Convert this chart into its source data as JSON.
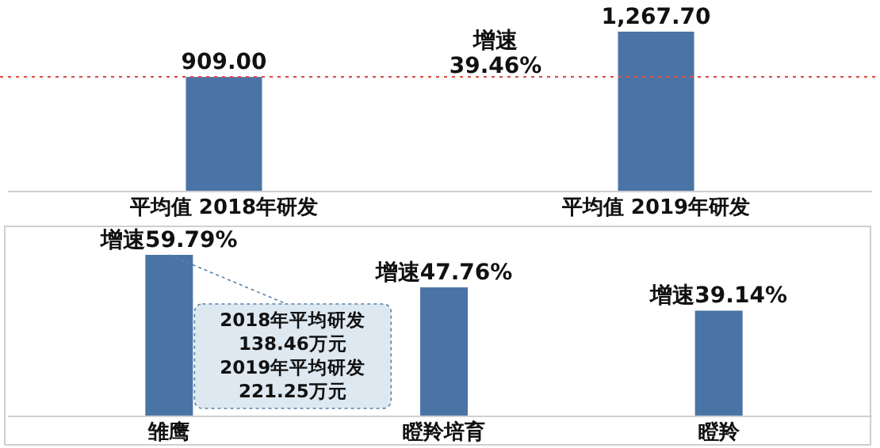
{
  "chart_data": [
    {
      "type": "bar",
      "categories": [
        "平均值 2018年研发",
        "平均值 2019年研发"
      ],
      "values": [
        909,
        1267.7
      ],
      "value_labels": [
        "909.00",
        "1,267.70"
      ],
      "color": "#4a74a6",
      "ref_lines": [
        {
          "axis": "y",
          "value": 909,
          "color": "#d9534f",
          "line_style": "dotted"
        }
      ],
      "annotations": [
        "增速\n39.46%"
      ]
    },
    {
      "type": "bar",
      "categories": [
        "雏鹰",
        "瞪羚培育",
        "瞪羚"
      ],
      "values": [
        59.79,
        47.76,
        39.14
      ],
      "value_labels": [
        "增速59.79%",
        "增速47.76%",
        "增速39.14%"
      ],
      "color": "#4a74a6",
      "annotations": [
        {
          "text": "2018年平均研发\n138.46万元\n2019年平均研发\n221.25万元",
          "x": "雏鹰",
          "y": 59.79
        }
      ]
    }
  ]
}
